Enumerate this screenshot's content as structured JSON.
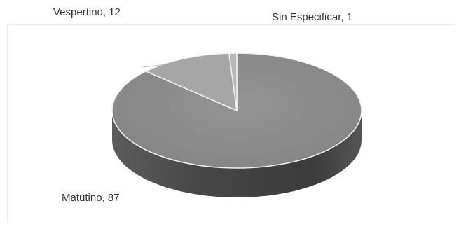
{
  "chart_data": {
    "type": "pie",
    "categories": [
      "Matutino",
      "Vespertino",
      "Sin Especificar"
    ],
    "values": [
      87,
      12,
      1
    ],
    "data_labels": [
      "Matutino, 87",
      "Vespertino, 12",
      "Sin Especificar, 1"
    ],
    "title": "",
    "legend": "none",
    "colors": {
      "Matutino": "#8e8e8e",
      "Vespertino": "#a6a6a6",
      "Sin Especificar": "#b8b8b8",
      "slice_border": "#f2f2f2"
    }
  }
}
